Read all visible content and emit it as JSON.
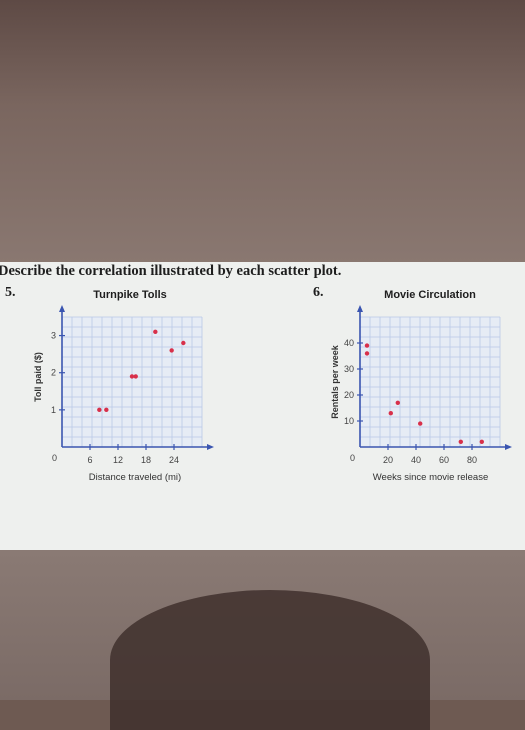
{
  "heading": "Describe the correlation illustrated by each scatter plot.",
  "colors": {
    "point": "#d8304a",
    "axis": "#3a55b0",
    "grid": "#b9c8e6",
    "plot_bg": "#e6ecf5"
  },
  "chart_data": [
    {
      "number": "5.",
      "type": "scatter",
      "title": "Turnpike Tolls",
      "xlabel": "Distance traveled (mi)",
      "ylabel": "Toll paid ($)",
      "xlim": [
        0,
        30
      ],
      "ylim": [
        0,
        3.5
      ],
      "xticks": [
        6,
        12,
        18,
        24
      ],
      "yticks": [
        1,
        2,
        3
      ],
      "origin_label": "0",
      "points": [
        {
          "x": 8,
          "y": 1.0
        },
        {
          "x": 9.5,
          "y": 1.0
        },
        {
          "x": 15,
          "y": 1.9
        },
        {
          "x": 15.8,
          "y": 1.9
        },
        {
          "x": 20,
          "y": 3.1
        },
        {
          "x": 23.5,
          "y": 2.6
        },
        {
          "x": 26,
          "y": 2.8
        }
      ],
      "grid": true
    },
    {
      "number": "6.",
      "type": "scatter",
      "title": "Movie Circulation",
      "xlabel": "Weeks since movie release",
      "ylabel": "Rentals per week",
      "xlim": [
        0,
        100
      ],
      "ylim": [
        0,
        50
      ],
      "xticks": [
        20,
        40,
        60,
        80
      ],
      "yticks": [
        10,
        20,
        30,
        40
      ],
      "origin_label": "0",
      "points": [
        {
          "x": 5,
          "y": 39
        },
        {
          "x": 5,
          "y": 36
        },
        {
          "x": 27,
          "y": 17
        },
        {
          "x": 22,
          "y": 13
        },
        {
          "x": 43,
          "y": 9
        },
        {
          "x": 72,
          "y": 2
        },
        {
          "x": 87,
          "y": 2
        }
      ],
      "grid": true
    }
  ]
}
